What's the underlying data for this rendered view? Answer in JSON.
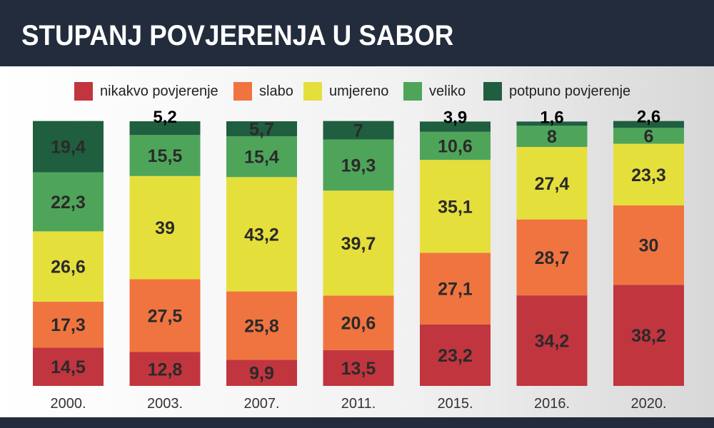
{
  "title": "STUPANJ POVJERENJA U SABOR",
  "colors": {
    "header_bg": "#232c3c",
    "nikakvo": "#c1353f",
    "slabo": "#ef7440",
    "umjereno": "#e5df3c",
    "veliko": "#4ea55a",
    "potpuno": "#1f5e3f"
  },
  "chart_data": {
    "type": "bar",
    "stacked": true,
    "title": "STUPANJ POVJERENJA U SABOR",
    "categories": [
      "2000.",
      "2003.",
      "2007.",
      "2011.",
      "2015.",
      "2016.",
      "2020."
    ],
    "series": [
      {
        "name": "nikakvo povjerenje",
        "key": "nikakvo",
        "values": [
          14.5,
          12.8,
          9.9,
          13.5,
          23.2,
          34.2,
          38.2
        ],
        "labels": [
          "14,5",
          "12,8",
          "9,9",
          "13,5",
          "23,2",
          "34,2",
          "38,2"
        ]
      },
      {
        "name": "slabo",
        "key": "slabo",
        "values": [
          17.3,
          27.5,
          25.8,
          20.6,
          27.1,
          28.7,
          30
        ],
        "labels": [
          "17,3",
          "27,5",
          "25,8",
          "20,6",
          "27,1",
          "28,7",
          "30"
        ]
      },
      {
        "name": "umjereno",
        "key": "umjereno",
        "values": [
          26.6,
          39,
          43.2,
          39.7,
          35.1,
          27.4,
          23.3
        ],
        "labels": [
          "26,6",
          "39",
          "43,2",
          "39,7",
          "35,1",
          "27,4",
          "23,3"
        ]
      },
      {
        "name": "veliko",
        "key": "veliko",
        "values": [
          22.3,
          15.5,
          15.4,
          19.3,
          10.6,
          8,
          6
        ],
        "labels": [
          "22,3",
          "15,5",
          "15,4",
          "19,3",
          "10,6",
          "8",
          "6"
        ]
      },
      {
        "name": "potpuno povjerenje",
        "key": "potpuno",
        "values": [
          19.4,
          5.2,
          5.7,
          7,
          3.9,
          1.6,
          2.6
        ],
        "labels": [
          "19,4",
          "5,2",
          "5,7",
          "7",
          "3,9",
          "1,6",
          "2,6"
        ]
      }
    ],
    "xlabel": "",
    "ylabel": "",
    "ylim": [
      0,
      100
    ],
    "legend": "top"
  }
}
